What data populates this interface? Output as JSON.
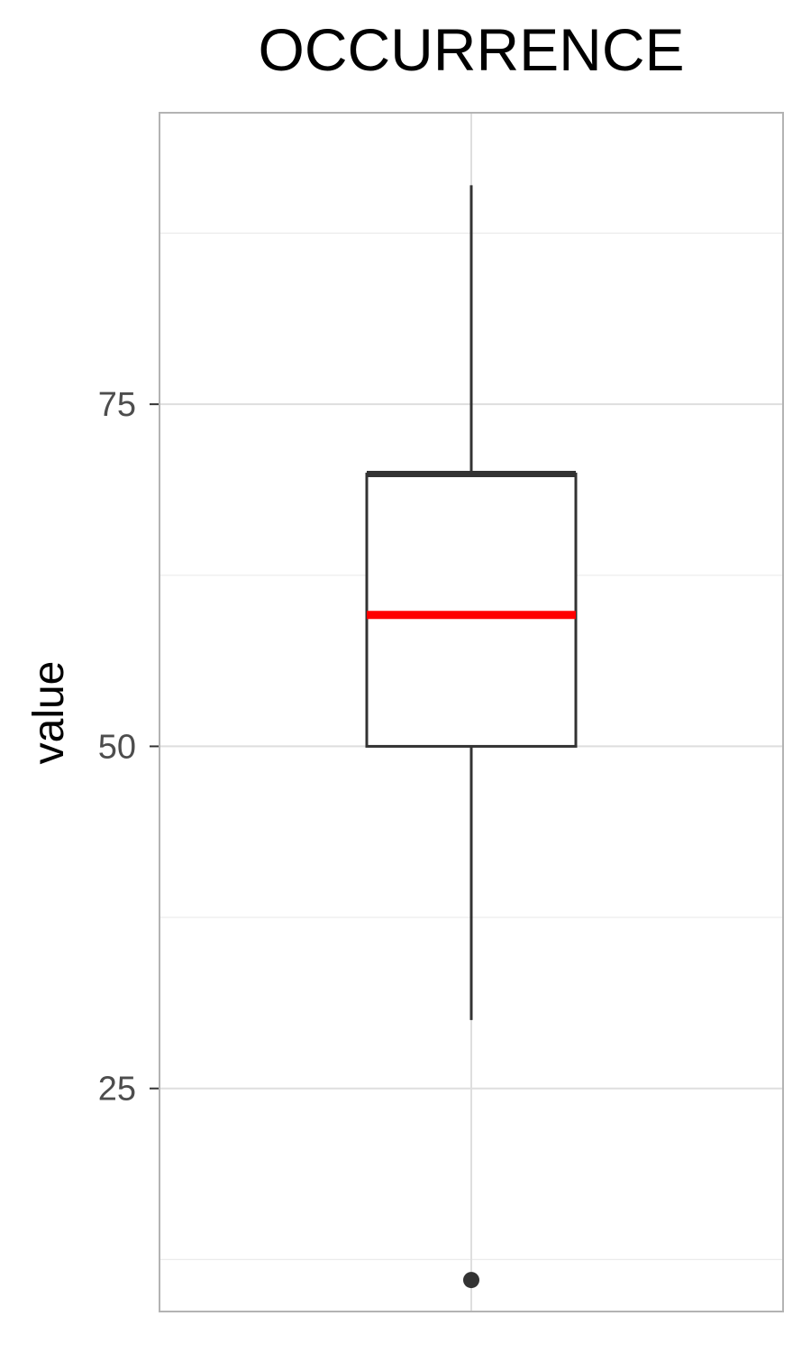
{
  "chart_data": {
    "type": "boxplot",
    "title": "OCCURRENCE",
    "xlabel": "",
    "ylabel": "value",
    "ylim": [
      8.7,
      96.3
    ],
    "yticks": [
      25,
      50,
      75
    ],
    "grid": true,
    "series": [
      {
        "whisker_low": 30,
        "q1": 50,
        "median": 59.6,
        "q3": 69.9,
        "whisker_high": 91,
        "outliers": [
          11
        ]
      }
    ],
    "colors": {
      "median": "#ff0000",
      "box": "#333333",
      "grid_major": "#dedede",
      "grid_minor": "#ebebeb",
      "panel_border": "#b3b3b3",
      "tick_text": "#4d4d4d"
    }
  }
}
